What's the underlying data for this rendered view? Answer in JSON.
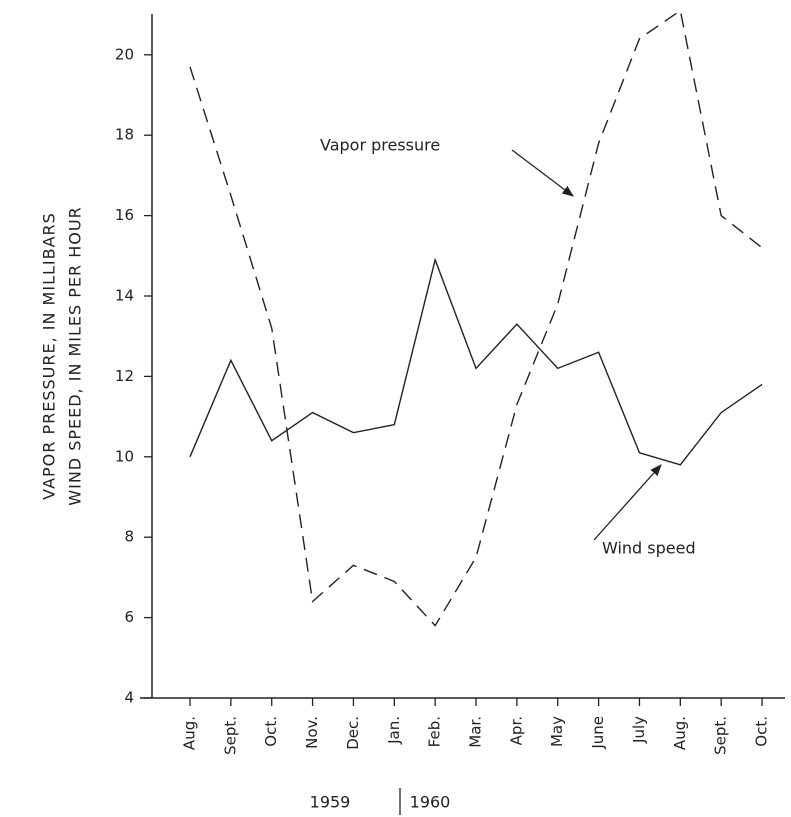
{
  "chart_data": {
    "type": "line",
    "ylabel": [
      "VAPOR PRESSURE, IN MILLIBARS",
      "WIND SPEED, IN MILES PER HOUR"
    ],
    "categories": [
      "Aug.",
      "Sept.",
      "Oct.",
      "Nov.",
      "Dec.",
      "Jan.",
      "Feb.",
      "Mar.",
      "Apr.",
      "May",
      "June",
      "July",
      "Aug.",
      "Sept.",
      "Oct."
    ],
    "year_labels": [
      "1959",
      "1960"
    ],
    "series": [
      {
        "name": "Vapor pressure",
        "color": "#222222",
        "line_style": "dashed",
        "values": [
          19.7,
          16.5,
          13.2,
          6.4,
          7.3,
          6.9,
          5.8,
          7.5,
          11.3,
          13.8,
          17.8,
          20.4,
          21.1,
          16.0,
          15.2
        ]
      },
      {
        "name": "Wind speed",
        "color": "#222222",
        "line_style": "solid",
        "values": [
          10.0,
          12.4,
          10.4,
          11.1,
          10.6,
          10.8,
          14.9,
          12.2,
          13.3,
          12.2,
          12.6,
          10.1,
          9.8,
          11.1,
          11.8
        ]
      }
    ],
    "ylim": [
      4,
      21
    ],
    "yticks": [
      4,
      6,
      8,
      10,
      12,
      14,
      16,
      18,
      20
    ],
    "grid": false
  }
}
